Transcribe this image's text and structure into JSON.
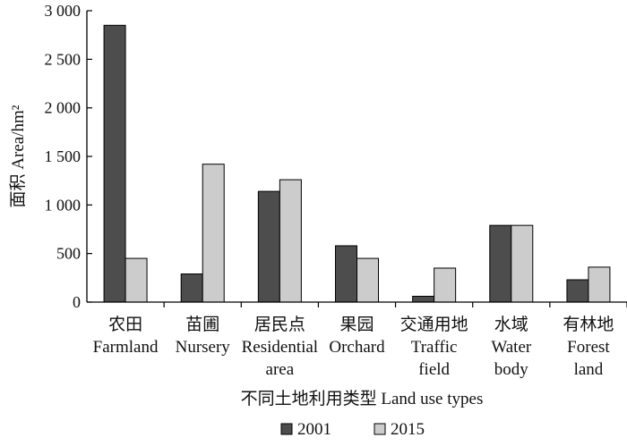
{
  "chart_data": {
    "type": "bar",
    "ylabel": "面积 Area/hm²",
    "xlabel": "不同土地利用类型  Land use types",
    "ylim": [
      0,
      3000
    ],
    "yticks": [
      0,
      500,
      1000,
      1500,
      2000,
      2500,
      3000
    ],
    "ytick_labels": [
      "0",
      "500",
      "1 000",
      "1 500",
      "2 000",
      "2 500",
      "3 000"
    ],
    "categories": [
      {
        "zh": "农田",
        "en": [
          "Farmland"
        ]
      },
      {
        "zh": "苗圃",
        "en": [
          "Nursery"
        ]
      },
      {
        "zh": "居民点",
        "en": [
          "Residential",
          "area"
        ]
      },
      {
        "zh": "果园",
        "en": [
          "Orchard"
        ]
      },
      {
        "zh": "交通用地",
        "en": [
          "Traffic",
          "field"
        ]
      },
      {
        "zh": "水域",
        "en": [
          "Water",
          "body"
        ]
      },
      {
        "zh": "有林地",
        "en": [
          "Forest",
          "land"
        ]
      }
    ],
    "series": [
      {
        "name": "2001",
        "color": "#4d4d4d",
        "values": [
          2850,
          290,
          1140,
          580,
          60,
          790,
          230
        ]
      },
      {
        "name": "2015",
        "color": "#cccccc",
        "values": [
          450,
          1420,
          1260,
          450,
          350,
          790,
          360
        ]
      }
    ],
    "legend_position": "bottom",
    "grid": false
  }
}
